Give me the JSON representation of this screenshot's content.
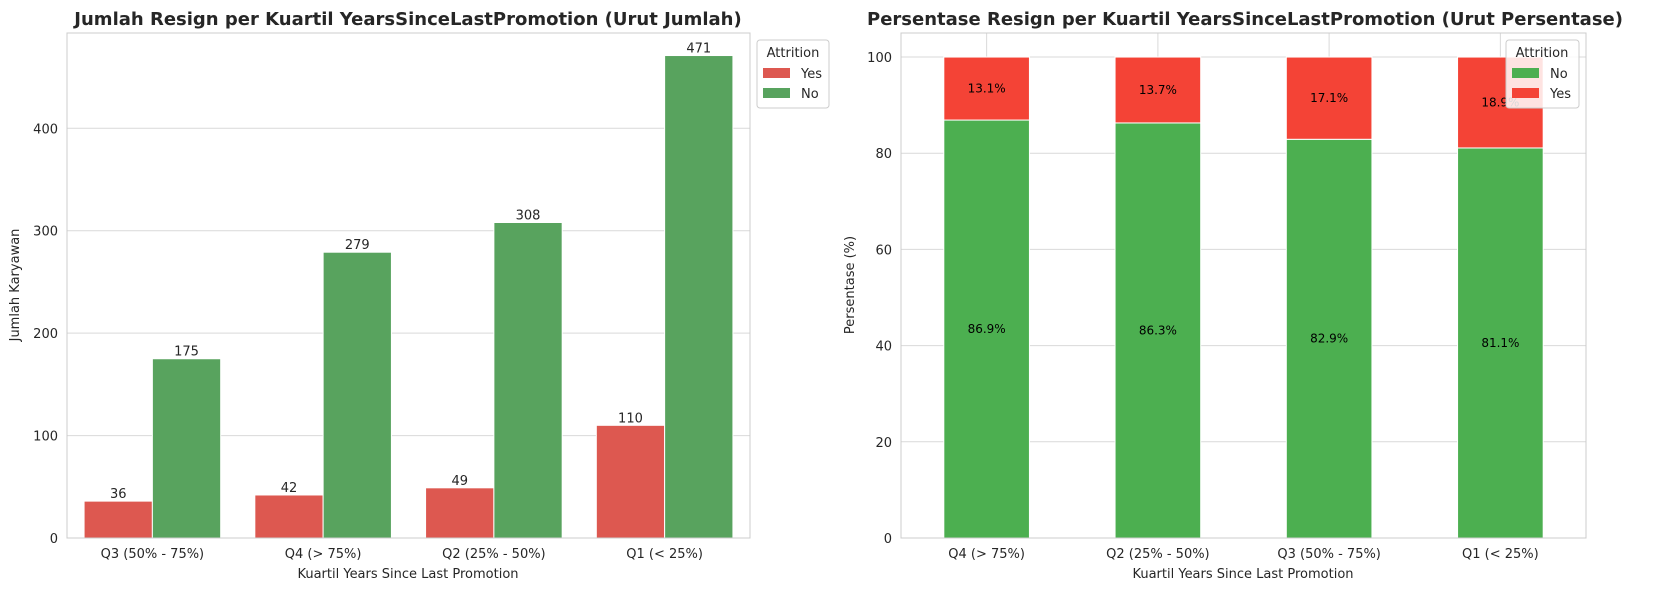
{
  "colors": {
    "yes_left": "#DD5850",
    "no_left": "#58A35E",
    "yes_right": "#F44336",
    "no_right": "#4CAF50",
    "grid": "#d9d9d9",
    "spine": "#cccccc",
    "text": "#262626"
  },
  "chart_data": [
    {
      "type": "bar",
      "title": "Jumlah Resign per Kuartil YearsSinceLastPromotion (Urut Jumlah)",
      "xlabel": "Kuartil Years Since Last Promotion",
      "ylabel": "Jumlah Karyawan",
      "categories": [
        "Q3 (50% - 75%)",
        "Q4 (> 75%)",
        "Q2 (25% - 50%)",
        "Q1 (< 25%)"
      ],
      "series": [
        {
          "name": "Yes",
          "values": [
            36,
            42,
            49,
            110
          ]
        },
        {
          "name": "No",
          "values": [
            175,
            279,
            308,
            471
          ]
        }
      ],
      "ylim": [
        0,
        493
      ],
      "yticks": [
        0,
        100,
        200,
        300,
        400
      ],
      "grid": true,
      "legend": {
        "title": "Attrition",
        "placement": "outside-top-right",
        "entries": [
          "Yes",
          "No"
        ]
      }
    },
    {
      "type": "bar",
      "stacked": true,
      "title": "Persentase Resign per Kuartil YearsSinceLastPromotion (Urut Persentase)",
      "xlabel": "Kuartil Years Since Last Promotion",
      "ylabel": "Persentase (%)",
      "categories": [
        "Q4 (> 75%)",
        "Q2 (25% - 50%)",
        "Q3 (50% - 75%)",
        "Q1 (< 25%)"
      ],
      "series": [
        {
          "name": "No",
          "values": [
            86.9,
            86.3,
            82.9,
            81.1
          ],
          "labels": [
            "86.9%",
            "86.3%",
            "82.9%",
            "81.1%"
          ]
        },
        {
          "name": "Yes",
          "values": [
            13.1,
            13.7,
            17.1,
            18.9
          ],
          "labels": [
            "13.1%",
            "13.7%",
            "17.1%",
            "18.9%"
          ]
        }
      ],
      "ylim": [
        0,
        105
      ],
      "yticks": [
        0,
        20,
        40,
        60,
        80,
        100
      ],
      "grid": true,
      "legend": {
        "title": "Attrition",
        "placement": "top-right",
        "entries": [
          "No",
          "Yes"
        ]
      }
    }
  ]
}
